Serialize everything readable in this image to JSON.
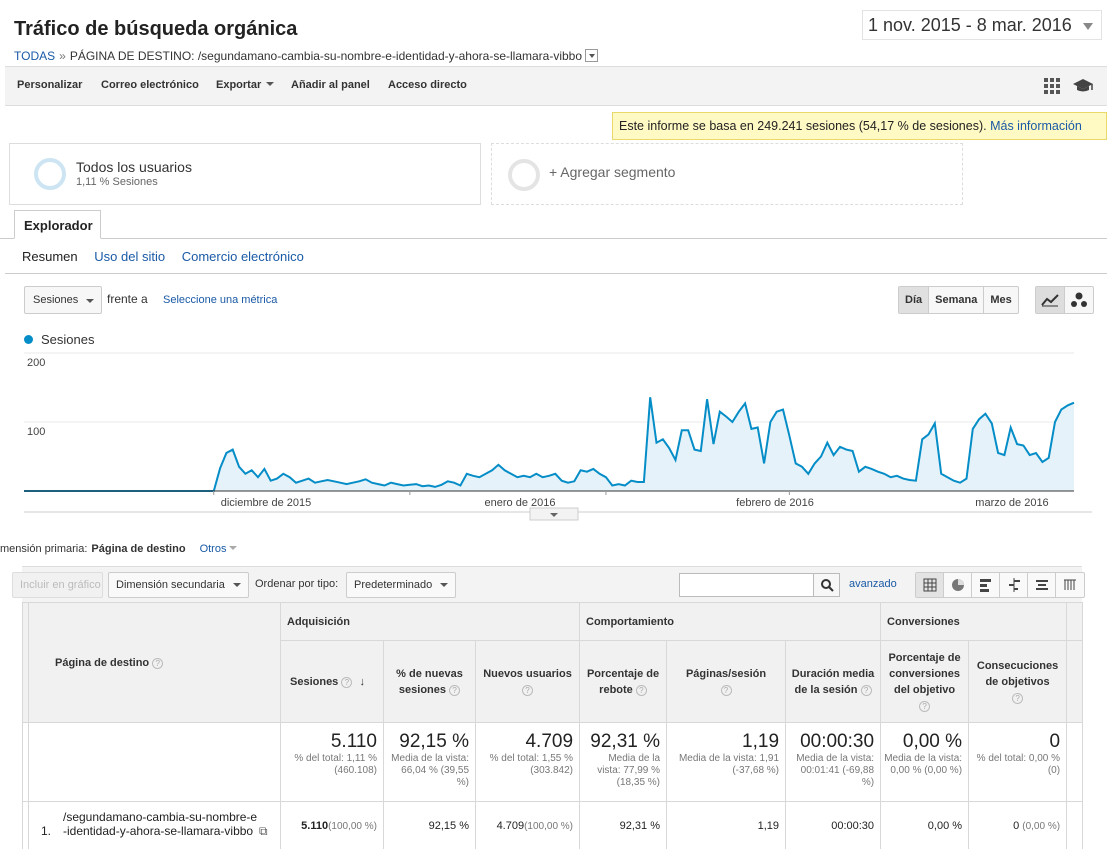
{
  "header": {
    "title": "Tráfico de búsqueda orgánica",
    "breadcrumb_all": "TODAS",
    "breadcrumb_sep": "»",
    "breadcrumb_page": "PÁGINA DE DESTINO: /segundamano-cambia-su-nombre-e-identidad-y-ahora-se-llamara-vibbo",
    "date_range": "1 nov. 2015 - 8 mar. 2016"
  },
  "toolbar": {
    "customize": "Personalizar",
    "email": "Correo electrónico",
    "export": "Exportar",
    "add_dashboard": "Añadir al panel",
    "shortcut": "Acceso directo"
  },
  "notice": {
    "text": "Este informe se basa en 249.241 sesiones (54,17 % de sesiones).",
    "link": "Más información"
  },
  "segments": {
    "all_users": "Todos los usuarios",
    "all_users_sub": "1,11 % Sesiones",
    "add_segment": "+ Agregar segmento"
  },
  "tabs": {
    "explorer": "Explorador",
    "summary": "Resumen",
    "site_usage": "Uso del sitio",
    "ecommerce": "Comercio electrónico"
  },
  "chart_controls": {
    "metric": "Sesiones",
    "versus": "frente a",
    "select_metric": "Seleccione una métrica",
    "day": "Día",
    "week": "Semana",
    "month": "Mes"
  },
  "chart_data": {
    "type": "area",
    "series": [
      {
        "name": "Sesiones",
        "values": [
          0,
          0,
          0,
          0,
          0,
          0,
          0,
          0,
          0,
          0,
          0,
          0,
          0,
          0,
          0,
          0,
          0,
          0,
          0,
          0,
          0,
          0,
          0,
          0,
          0,
          0,
          0,
          0,
          0,
          0,
          0,
          33,
          55,
          60,
          35,
          25,
          30,
          20,
          32,
          15,
          18,
          25,
          20,
          12,
          15,
          18,
          12,
          14,
          16,
          14,
          12,
          10,
          12,
          14,
          17,
          12,
          10,
          8,
          12,
          10,
          8,
          9,
          10,
          7,
          8,
          6,
          9,
          14,
          12,
          8,
          25,
          22,
          20,
          25,
          30,
          38,
          30,
          25,
          20,
          22,
          20,
          25,
          20,
          22,
          25,
          15,
          12,
          14,
          30,
          28,
          32,
          25,
          20,
          8,
          10,
          8,
          15,
          13,
          13,
          136,
          70,
          75,
          62,
          45,
          88,
          88,
          60,
          58,
          133,
          68,
          115,
          108,
          100,
          115,
          127,
          90,
          92,
          40,
          100,
          115,
          118,
          80,
          40,
          35,
          25,
          40,
          50,
          70,
          52,
          64,
          60,
          58,
          28,
          35,
          32,
          28,
          25,
          20,
          22,
          18,
          16,
          15,
          75,
          82,
          98,
          25,
          20,
          15,
          12,
          18,
          90,
          104,
          112,
          98,
          55,
          52,
          92,
          68,
          66,
          52,
          55,
          42,
          48,
          100,
          118,
          124,
          128
        ]
      }
    ],
    "x_ticks": [
      "diciembre de 2015",
      "enero de 2016",
      "febrero de 2016",
      "marzo de 2016"
    ],
    "y_ticks": [
      "100",
      "200"
    ],
    "ylim": [
      0,
      200
    ],
    "grid": true,
    "colors": {
      "line": "#058dc7",
      "fill": "#e6f2f9"
    }
  },
  "table_controls": {
    "primary_dim_label": "mensión primaria:",
    "primary_dim_value": "Página de destino",
    "others": "Otros",
    "plot_rows": "Incluir en gráfico",
    "secondary_dim": "Dimensión secundaria",
    "sort_label": "Ordenar por tipo:",
    "sort_value": "Predeterminado",
    "advanced": "avanzado"
  },
  "table": {
    "group_acquisition": "Adquisición",
    "group_behavior": "Comportamiento",
    "group_conversions": "Conversiones",
    "col_page": "Página de destino",
    "col_sessions": "Sesiones",
    "col_new_pct": "% de nuevas sesiones",
    "col_new_users": "Nuevos usuarios",
    "col_bounce": "Porcentaje de rebote",
    "col_pages": "Páginas/sesión",
    "col_duration": "Duración media de la sesión",
    "col_conv_rate": "Porcentaje de conversiones del objetivo",
    "col_goals": "Consecuciones de objetivos",
    "totals": {
      "sessions": "5.110",
      "sessions_sub": "% del total: 1,11 % (460.108)",
      "new_pct": "92,15 %",
      "new_pct_sub": "Media de la vista: 66,04 % (39,55 %)",
      "new_users": "4.709",
      "new_users_sub": "% del total: 1,55 % (303.842)",
      "bounce": "92,31 %",
      "bounce_sub": "Media de la vista: 77,99 % (18,35 %)",
      "pages": "1,19",
      "pages_sub": "Media de la vista: 1,91 (-37,68 %)",
      "duration": "00:00:30",
      "duration_sub": "Media de la vista: 00:01:41 (-69,88 %)",
      "conv_rate": "0,00 %",
      "conv_rate_sub": "Media de la vista: 0,00 % (0,00 %)",
      "goals": "0",
      "goals_sub": "% del total: 0,00 % (0)"
    },
    "rows": [
      {
        "index": "1.",
        "page": "/segundamano-cambia-su-nombre-e-identidad-y-ahora-se-llamara-vibbo",
        "sessions": "5.110",
        "sessions_pct": "(100,00 %)",
        "new_pct": "92,15 %",
        "new_users": "4.709",
        "new_users_pct": "(100,00 %)",
        "bounce": "92,31 %",
        "pages": "1,19",
        "duration": "00:00:30",
        "conv_rate": "0,00 %",
        "goals": "0",
        "goals_pct": "(0,00 %)"
      }
    ]
  }
}
